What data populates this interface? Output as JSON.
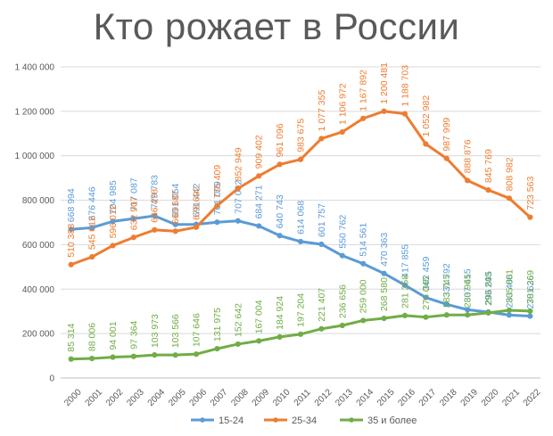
{
  "title": "Кто рожает в России",
  "chart_data": {
    "type": "line",
    "title": "Кто рожает в России",
    "x": [
      "2000",
      "2001",
      "2002",
      "2003",
      "2004",
      "2005",
      "2006",
      "2007",
      "2008",
      "2009",
      "2010",
      "2011",
      "2012",
      "2013",
      "2014",
      "2015",
      "2016",
      "2017",
      "2018",
      "2019",
      "2020",
      "2021",
      "2022"
    ],
    "ylim": [
      0,
      1400000
    ],
    "yticks": [
      0,
      200000,
      400000,
      600000,
      800000,
      1000000,
      1200000,
      1400000
    ],
    "ytick_labels": [
      "0",
      "200 000",
      "400 000",
      "600 000",
      "800 000",
      "1 000 000",
      "1 200 000",
      "1 400 000"
    ],
    "grid": true,
    "legend_position": "bottom",
    "series": [
      {
        "name": "15-24",
        "color": "#5b9bd5",
        "values": [
          668994,
          676446,
          704985,
          717087,
          729783,
          691054,
          691442,
          701099,
          707092,
          684271,
          640743,
          614068,
          601757,
          550762,
          514561,
          470363,
          417855,
          362459,
          331792,
          307415,
          296895,
          283486,
          278636
        ],
        "labels": [
          "668 994",
          "676 446",
          "704 985",
          "717 087",
          "729 783",
          "691 054",
          "691 442",
          "701 099",
          "707 092",
          "684 271",
          "640 743",
          "614 068",
          "601 757",
          "550 762",
          "514 561",
          "470 363",
          "417 855",
          "362 459",
          "331 792",
          "307 415",
          "296 895",
          "283 486",
          "278 636"
        ]
      },
      {
        "name": "25-34",
        "color": "#ed7d31",
        "values": [
          510388,
          545012,
          596012,
          632907,
          666478,
          660687,
          678692,
          775409,
          852949,
          909402,
          961096,
          983675,
          1077355,
          1106972,
          1167892,
          1200481,
          1188703,
          1052982,
          987999,
          888876,
          845769,
          808982,
          723563
        ],
        "labels": [
          "510 388",
          "545 012",
          "596 012",
          "632 907",
          "666 478",
          "660 687",
          "678 692",
          "775 409",
          "852 949",
          "909 402",
          "961 096",
          "983 675",
          "1 077 355",
          "1 106 972",
          "1 167 892",
          "1 200 481",
          "1 188 703",
          "1 052 982",
          "987 999",
          "888 876",
          "845 769",
          "808 982",
          "723 563"
        ]
      },
      {
        "name": "35 и более",
        "color": "#70ad47",
        "values": [
          85314,
          88006,
          94001,
          97364,
          103973,
          103566,
          107646,
          131975,
          152642,
          167004,
          184924,
          197204,
          221407,
          236656,
          259000,
          268580,
          281258,
          274045,
          283745,
          283965,
          293243,
          305001,
          301269
        ],
        "labels": [
          "85 314",
          "88 006",
          "94 001",
          "97 364",
          "103 973",
          "103 566",
          "107 646",
          "131 975",
          "152 642",
          "167 004",
          "184 924",
          "197 204",
          "221 407",
          "236 656",
          "259 000",
          "268 580",
          "281 258",
          "274 045",
          "283 745",
          "283 965",
          "293 243",
          "305 001",
          "301 269"
        ]
      }
    ]
  }
}
